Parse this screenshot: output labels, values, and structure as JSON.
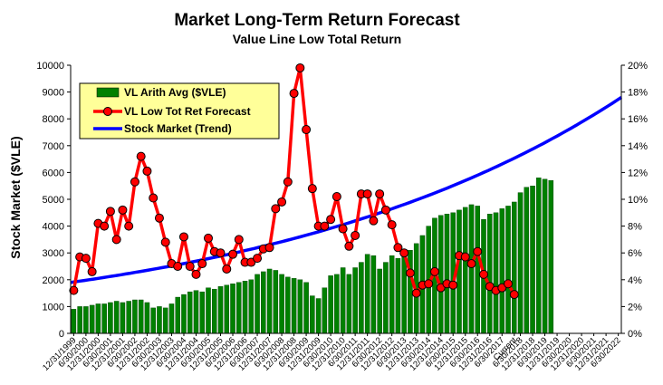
{
  "chart_data": {
    "type": "bar+line",
    "title": "Market Long-Term Return Forecast",
    "subtitle": "Value Line Low Total Return",
    "ylabel": "Stock Market ($VLE)",
    "ylim": [
      0,
      10000
    ],
    "yticks": [
      "0",
      "1000",
      "2000",
      "3000",
      "4000",
      "5000",
      "6000",
      "7000",
      "8000",
      "9000",
      "10000"
    ],
    "y2lim": [
      0,
      20
    ],
    "y2ticks": [
      "0%",
      "2%",
      "4%",
      "6%",
      "8%",
      "10%",
      "12%",
      "14%",
      "16%",
      "18%",
      "20%"
    ],
    "n_slots": 79,
    "x_tick_labels": [
      "12/31/1999",
      "6/30/2000",
      "12/31/2000",
      "6/30/2001",
      "12/31/2001",
      "6/30/2002",
      "12/31/2002",
      "6/30/2003",
      "12/31/2003",
      "6/30/2004",
      "12/31/2004",
      "6/30/2005",
      "12/31/2005",
      "6/30/2006",
      "12/31/2006",
      "6/30/2007",
      "12/31/2007",
      "6/30/2008",
      "12/31/2008",
      "6/30/2009",
      "12/31/2009",
      "6/30/2010",
      "12/31/2010",
      "6/30/2011",
      "12/31/2011",
      "6/30/2012",
      "12/31/2012",
      "6/30/2013",
      "12/31/2013",
      "6/30/2014",
      "12/31/2014",
      "6/30/2015",
      "12/31/2015",
      "6/30/2016",
      "12/31/2016",
      "6/30/2017",
      "Current",
      "6/30/2018",
      "12/31/2018",
      "6/30/2019",
      "12/31/2019",
      "6/30/2020",
      "12/31/2020",
      "6/30/2021",
      "12/31/2021",
      "6/30/2022"
    ],
    "x_tick_slots": [
      0,
      2,
      4,
      6,
      8,
      10,
      12,
      14,
      16,
      18,
      20,
      22,
      24,
      26,
      28,
      30,
      32,
      34,
      36,
      38,
      40,
      42,
      44,
      46,
      48,
      50,
      52,
      54,
      56,
      58,
      60,
      62,
      64,
      66,
      68,
      70,
      72,
      73,
      75,
      77,
      79,
      81,
      83,
      85,
      87,
      89
    ],
    "legend": {
      "position": "top-left",
      "entries": [
        "VL Arith Avg ($VLE)",
        "VL Low Tot Ret Forecast",
        "Stock Market (Trend)"
      ]
    },
    "series": [
      {
        "name": "VL Arith Avg ($VLE)",
        "type": "bar",
        "axis": "left",
        "color": "#008000",
        "values": [
          900,
          1000,
          1000,
          1050,
          1100,
          1100,
          1150,
          1200,
          1150,
          1200,
          1250,
          1250,
          1150,
          950,
          1000,
          950,
          1100,
          1350,
          1450,
          1550,
          1600,
          1550,
          1700,
          1650,
          1750,
          1800,
          1850,
          1900,
          1950,
          2000,
          2200,
          2300,
          2400,
          2350,
          2200,
          2100,
          2050,
          2000,
          1900,
          1400,
          1300,
          1700,
          2150,
          2200,
          2450,
          2200,
          2450,
          2650,
          2950,
          2900,
          2400,
          2650,
          2900,
          2800,
          3000,
          3100,
          3350,
          3650,
          4000,
          4300,
          4400,
          4450,
          4500,
          4600,
          4700,
          4800,
          4750,
          4250,
          4450,
          4500,
          4650,
          4750,
          4900,
          5250,
          5450,
          5500,
          5800,
          5750,
          5700
        ]
      },
      {
        "name": "VL Low Tot Ret Forecast",
        "type": "line",
        "axis": "right",
        "color": "#ff0000",
        "values": [
          3.2,
          5.7,
          5.6,
          4.6,
          8.2,
          8.0,
          9.1,
          7.0,
          9.2,
          8.0,
          11.3,
          13.2,
          12.1,
          10.1,
          8.6,
          6.8,
          5.2,
          5.0,
          7.2,
          5.0,
          4.4,
          5.2,
          7.1,
          6.1,
          6.0,
          4.8,
          5.9,
          7.0,
          5.3,
          5.3,
          5.6,
          6.3,
          6.4,
          9.3,
          9.8,
          11.3,
          17.9,
          19.8,
          15.2,
          10.8,
          8.0,
          8.0,
          8.5,
          10.2,
          7.8,
          6.5,
          7.3,
          10.4,
          10.4,
          8.4,
          10.4,
          9.2,
          8.1,
          6.4,
          6.0,
          4.5,
          3.0,
          3.6,
          3.7,
          4.6,
          3.4,
          3.7,
          3.6,
          5.8,
          5.7,
          5.2,
          6.1,
          4.4,
          3.5,
          3.2,
          3.4,
          3.7,
          2.9
        ]
      },
      {
        "name": "Stock Market (Trend)",
        "type": "line",
        "axis": "left",
        "color": "#0000ff",
        "start_value": 1900,
        "end_value": 8800,
        "grid": false
      }
    ]
  }
}
